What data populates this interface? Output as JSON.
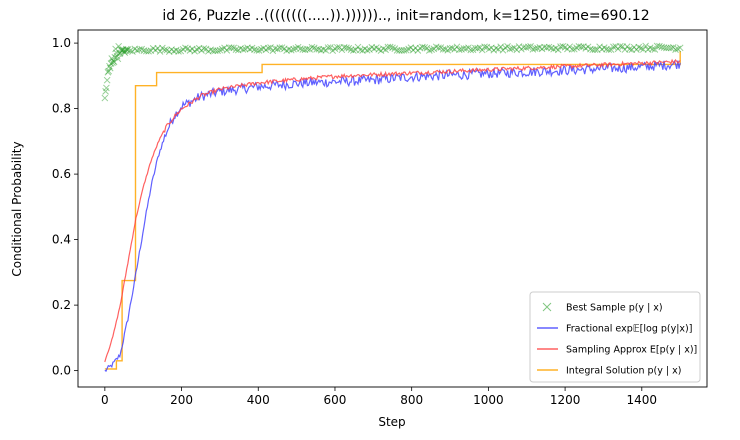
{
  "chart_data": {
    "type": "line",
    "title": "id 26, Puzzle ..((((((((.....)).))))))..,  init=random, k=1250, time=690.12",
    "xlabel": "Step",
    "ylabel": "Conditional Probability",
    "xlim": [
      -70,
      1570
    ],
    "ylim": [
      -0.05,
      1.04
    ],
    "xticks": [
      0,
      200,
      400,
      600,
      800,
      1000,
      1200,
      1400
    ],
    "yticks": [
      0.0,
      0.2,
      0.4,
      0.6,
      0.8,
      1.0
    ],
    "grid": false,
    "legend_position": "lower-right",
    "series": [
      {
        "name": "Best Sample p(y | x)",
        "style": "scatter-x",
        "color": "#2ca02c",
        "x": [
          0,
          5,
          10,
          15,
          20,
          25,
          30,
          40,
          50,
          60,
          80,
          100,
          150,
          200,
          300,
          400,
          600,
          800,
          1000,
          1200,
          1400,
          1500
        ],
        "y": [
          0.83,
          0.88,
          0.91,
          0.93,
          0.95,
          0.96,
          0.97,
          0.975,
          0.975,
          0.978,
          0.978,
          0.98,
          0.98,
          0.98,
          0.98,
          0.982,
          0.982,
          0.983,
          0.984,
          0.985,
          0.986,
          0.986
        ]
      },
      {
        "name": "Fractional exp𝔼[log p(y|x)]",
        "style": "line",
        "color": "#4444ff",
        "x": [
          0,
          20,
          40,
          60,
          80,
          100,
          120,
          140,
          160,
          180,
          200,
          250,
          300,
          400,
          500,
          600,
          700,
          800,
          900,
          1000,
          1100,
          1200,
          1300,
          1400,
          1500
        ],
        "y": [
          0.0,
          0.02,
          0.05,
          0.16,
          0.29,
          0.43,
          0.56,
          0.66,
          0.73,
          0.78,
          0.81,
          0.84,
          0.855,
          0.87,
          0.88,
          0.885,
          0.89,
          0.9,
          0.905,
          0.91,
          0.915,
          0.92,
          0.925,
          0.93,
          0.94
        ]
      },
      {
        "name": "Sampling Approx E[p(y | x)]",
        "style": "line",
        "color": "#ff4444",
        "x": [
          0,
          20,
          40,
          60,
          80,
          100,
          120,
          140,
          160,
          180,
          200,
          250,
          300,
          400,
          500,
          600,
          700,
          800,
          900,
          1000,
          1100,
          1200,
          1300,
          1400,
          1500
        ],
        "y": [
          0.03,
          0.1,
          0.2,
          0.33,
          0.46,
          0.56,
          0.64,
          0.7,
          0.745,
          0.775,
          0.8,
          0.84,
          0.86,
          0.88,
          0.89,
          0.9,
          0.905,
          0.91,
          0.915,
          0.92,
          0.925,
          0.93,
          0.935,
          0.94,
          0.945
        ]
      },
      {
        "name": "Integral Solution p(y | x)",
        "style": "step",
        "color": "#ffa500",
        "x": [
          0,
          30,
          45,
          80,
          135,
          410,
          1500
        ],
        "y": [
          0.005,
          0.03,
          0.275,
          0.87,
          0.91,
          0.935,
          0.975
        ]
      }
    ]
  }
}
